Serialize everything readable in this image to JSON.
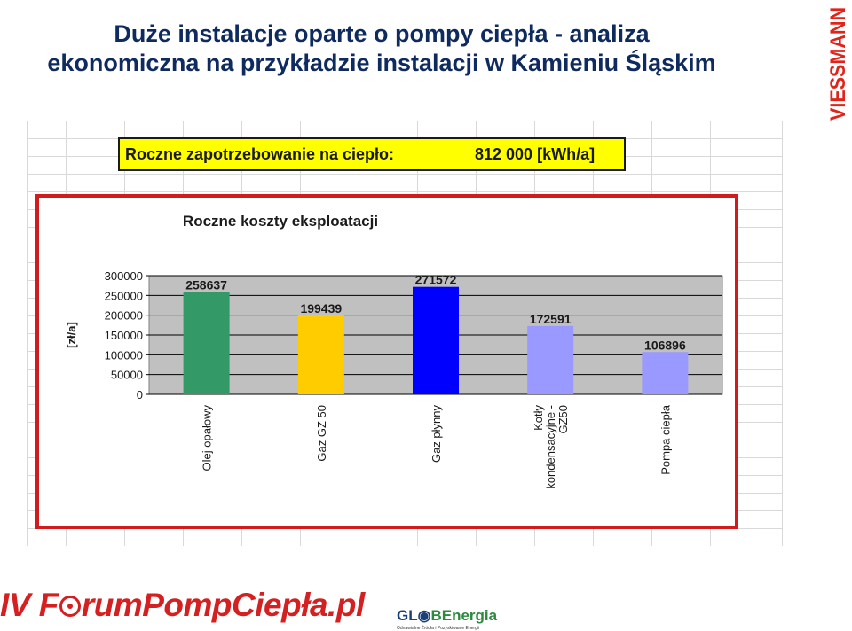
{
  "title": {
    "line1": "Duże instalacje oparte o pompy ciepła - analiza",
    "line2": "ekonomiczna na przykładzie instalacji w Kamieniu Śląskim"
  },
  "banner": {
    "label": "Roczne zapotrzebowanie na ciepło:",
    "value": "812 000",
    "unit": "[kWh/a]"
  },
  "logos": {
    "viessmann": "VIESSMANN",
    "forum_pre": "IV F",
    "forum_post": "rumPompCiepła.pl",
    "globe_a": "GL",
    "globe_b": "BEnergia",
    "globe_tagline": "Odnawialne Źródła i Pozyskiwanie Energii"
  },
  "chart_data": {
    "type": "bar",
    "title": "Roczne koszty eksploatacji",
    "ylabel": "[zł/a]",
    "xlabel": "",
    "ylim": [
      0,
      300000
    ],
    "yticks": [
      "0",
      "50000",
      "100000",
      "150000",
      "200000",
      "250000",
      "300000"
    ],
    "grid": true,
    "categories": [
      "Olej opałowy",
      "Gaz GZ 50",
      "Gaz płynny",
      "Kotły kondensacyjne - GZ50",
      "Pompa ciepła"
    ],
    "category_label_lines": [
      [
        "Olej opałowy"
      ],
      [
        "Gaz GZ 50"
      ],
      [
        "Gaz płynny"
      ],
      [
        "Kotły",
        "kondensacyjne -",
        "GZ50"
      ],
      [
        "Pompa ciepła"
      ]
    ],
    "values": [
      258637,
      199439,
      271572,
      172591,
      106896
    ],
    "data_labels": [
      "258637",
      "199439",
      "271572",
      "172591",
      "106896"
    ],
    "colors": [
      "#339966",
      "#ffcc00",
      "#0000ff",
      "#9999ff",
      "#9999ff"
    ],
    "plot_background": "#c0c0c0"
  }
}
